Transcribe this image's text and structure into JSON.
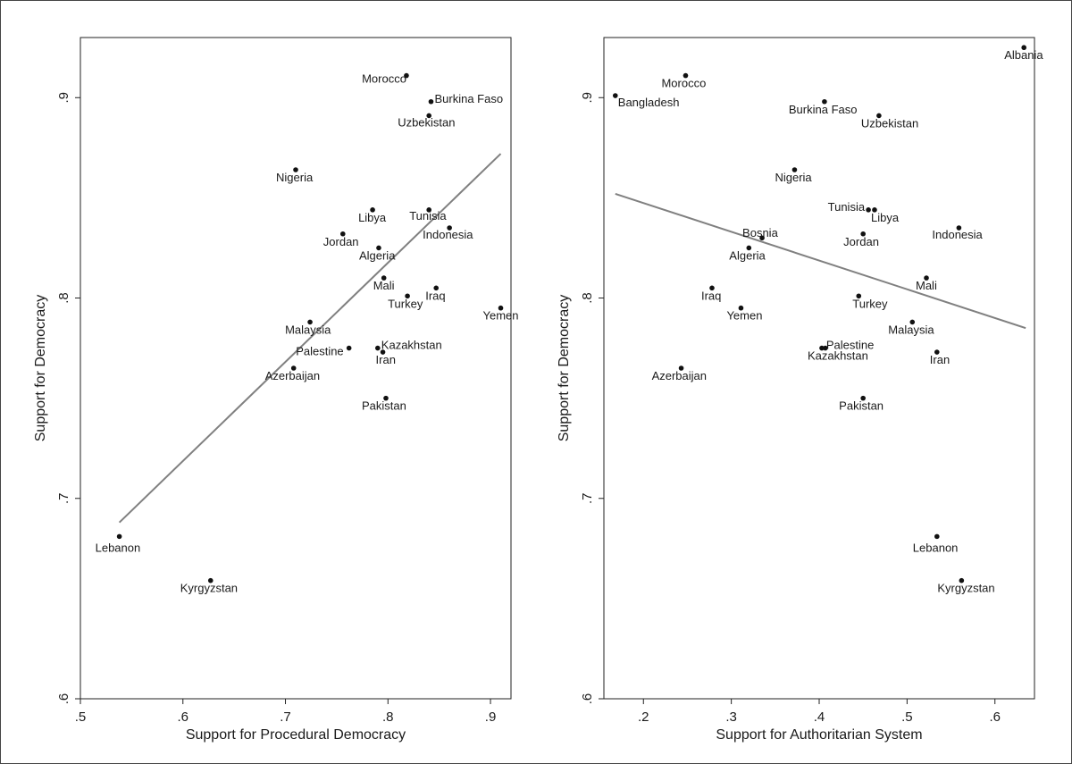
{
  "chart_data": [
    {
      "type": "scatter",
      "xlabel": "Support for Procedural Democracy",
      "ylabel": "Support for Democracy",
      "xlim": [
        0.5,
        0.92
      ],
      "ylim": [
        0.6,
        0.93
      ],
      "xticks": [
        {
          "v": 0.5,
          "label": ".5"
        },
        {
          "v": 0.6,
          "label": ".6"
        },
        {
          "v": 0.7,
          "label": ".7"
        },
        {
          "v": 0.8,
          "label": ".8"
        },
        {
          "v": 0.9,
          "label": ".9"
        }
      ],
      "yticks": [
        {
          "v": 0.6,
          "label": ".6"
        },
        {
          "v": 0.7,
          "label": ".7"
        },
        {
          "v": 0.8,
          "label": ".8"
        },
        {
          "v": 0.9,
          "label": ".9"
        }
      ],
      "fit_line": {
        "x": [
          0.538,
          0.91
        ],
        "y": [
          0.688,
          0.872
        ]
      },
      "points": [
        {
          "label": "Morocco",
          "x": 0.818,
          "y": 0.911
        },
        {
          "label": "Burkina Faso",
          "x": 0.842,
          "y": 0.898
        },
        {
          "label": "Uzbekistan",
          "x": 0.84,
          "y": 0.891
        },
        {
          "label": "Nigeria",
          "x": 0.71,
          "y": 0.864
        },
        {
          "label": "Libya",
          "x": 0.785,
          "y": 0.844
        },
        {
          "label": "Tunisia",
          "x": 0.84,
          "y": 0.844
        },
        {
          "label": "Indonesia",
          "x": 0.86,
          "y": 0.835
        },
        {
          "label": "Jordan",
          "x": 0.756,
          "y": 0.832
        },
        {
          "label": "Algeria",
          "x": 0.791,
          "y": 0.825
        },
        {
          "label": "Mali",
          "x": 0.796,
          "y": 0.81
        },
        {
          "label": "Iraq",
          "x": 0.847,
          "y": 0.805
        },
        {
          "label": "Turkey",
          "x": 0.819,
          "y": 0.801
        },
        {
          "label": "Yemen",
          "x": 0.91,
          "y": 0.795
        },
        {
          "label": "Malaysia",
          "x": 0.724,
          "y": 0.788
        },
        {
          "label": "Palestine",
          "x": 0.762,
          "y": 0.775
        },
        {
          "label": "Kazakhstan",
          "x": 0.79,
          "y": 0.775
        },
        {
          "label": "Iran",
          "x": 0.795,
          "y": 0.773
        },
        {
          "label": "Azerbaijan",
          "x": 0.708,
          "y": 0.765
        },
        {
          "label": "Pakistan",
          "x": 0.798,
          "y": 0.75
        },
        {
          "label": "Lebanon",
          "x": 0.538,
          "y": 0.681
        },
        {
          "label": "Kyrgyzstan",
          "x": 0.627,
          "y": 0.659
        }
      ]
    },
    {
      "type": "scatter",
      "xlabel": "Support for Authoritarian System",
      "ylabel": "Support for Democracy",
      "xlim": [
        0.155,
        0.645
      ],
      "ylim": [
        0.6,
        0.93
      ],
      "xticks": [
        {
          "v": 0.2,
          "label": ".2"
        },
        {
          "v": 0.3,
          "label": ".3"
        },
        {
          "v": 0.4,
          "label": ".4"
        },
        {
          "v": 0.5,
          "label": ".5"
        },
        {
          "v": 0.6,
          "label": ".6"
        }
      ],
      "yticks": [
        {
          "v": 0.6,
          "label": ".6"
        },
        {
          "v": 0.7,
          "label": ".7"
        },
        {
          "v": 0.8,
          "label": ".8"
        },
        {
          "v": 0.9,
          "label": ".9"
        }
      ],
      "fit_line": {
        "x": [
          0.168,
          0.635
        ],
        "y": [
          0.852,
          0.785
        ]
      },
      "points": [
        {
          "label": "Albania",
          "x": 0.633,
          "y": 0.925
        },
        {
          "label": "Morocco",
          "x": 0.248,
          "y": 0.911
        },
        {
          "label": "Bangladesh",
          "x": 0.168,
          "y": 0.901
        },
        {
          "label": "Burkina Faso",
          "x": 0.406,
          "y": 0.898
        },
        {
          "label": "Uzbekistan",
          "x": 0.468,
          "y": 0.891
        },
        {
          "label": "Nigeria",
          "x": 0.372,
          "y": 0.864
        },
        {
          "label": "Tunisia",
          "x": 0.456,
          "y": 0.844
        },
        {
          "label": "Libya",
          "x": 0.463,
          "y": 0.844
        },
        {
          "label": "Indonesia",
          "x": 0.559,
          "y": 0.835
        },
        {
          "label": "Bosnia",
          "x": 0.335,
          "y": 0.83
        },
        {
          "label": "Jordan",
          "x": 0.45,
          "y": 0.832
        },
        {
          "label": "Algeria",
          "x": 0.32,
          "y": 0.825
        },
        {
          "label": "Mali",
          "x": 0.522,
          "y": 0.81
        },
        {
          "label": "Iraq",
          "x": 0.278,
          "y": 0.805
        },
        {
          "label": "Turkey",
          "x": 0.445,
          "y": 0.801
        },
        {
          "label": "Yemen",
          "x": 0.311,
          "y": 0.795
        },
        {
          "label": "Malaysia",
          "x": 0.506,
          "y": 0.788
        },
        {
          "label": "Palestine",
          "x": 0.407,
          "y": 0.775
        },
        {
          "label": "Kazakhstan",
          "x": 0.403,
          "y": 0.775
        },
        {
          "label": "Iran",
          "x": 0.534,
          "y": 0.773
        },
        {
          "label": "Azerbaijan",
          "x": 0.243,
          "y": 0.765
        },
        {
          "label": "Pakistan",
          "x": 0.45,
          "y": 0.75
        },
        {
          "label": "Lebanon",
          "x": 0.534,
          "y": 0.681
        },
        {
          "label": "Kyrgyzstan",
          "x": 0.562,
          "y": 0.659
        }
      ]
    }
  ],
  "colors": {
    "point": "#111111",
    "fit_line": "#808080",
    "axis": "#222222"
  }
}
